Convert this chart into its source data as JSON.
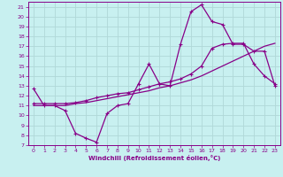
{
  "xlabel": "Windchill (Refroidissement éolien,°C)",
  "bg_color": "#c8f0f0",
  "grid_color": "#b0d8d8",
  "line_color": "#880088",
  "spine_color": "#880088",
  "xlim": [
    -0.5,
    23.5
  ],
  "ylim": [
    7,
    21.5
  ],
  "xticks": [
    0,
    1,
    2,
    3,
    4,
    5,
    6,
    7,
    8,
    9,
    10,
    11,
    12,
    13,
    14,
    15,
    16,
    17,
    18,
    19,
    20,
    21,
    22,
    23
  ],
  "yticks": [
    7,
    8,
    9,
    10,
    11,
    12,
    13,
    14,
    15,
    16,
    17,
    18,
    19,
    20,
    21
  ],
  "curve1_x": [
    0,
    1,
    2,
    3,
    4,
    5,
    6,
    7,
    8,
    9,
    10,
    11,
    12,
    13,
    14,
    15,
    16,
    17,
    18,
    19,
    20,
    21,
    22,
    23
  ],
  "curve1_y": [
    12.7,
    11.0,
    11.0,
    10.5,
    8.2,
    7.7,
    7.3,
    10.2,
    11.0,
    11.2,
    13.2,
    15.2,
    13.2,
    13.0,
    17.2,
    20.5,
    21.2,
    19.5,
    19.2,
    17.2,
    17.2,
    16.5,
    16.5,
    13.0
  ],
  "curve2_x": [
    0,
    1,
    2,
    3,
    4,
    5,
    6,
    7,
    8,
    9,
    10,
    11,
    12,
    13,
    14,
    15,
    16,
    17,
    18,
    19,
    20,
    21,
    22,
    23
  ],
  "curve2_y": [
    11.0,
    11.0,
    11.0,
    11.0,
    11.2,
    11.3,
    11.5,
    11.7,
    11.9,
    12.1,
    12.3,
    12.5,
    12.8,
    13.0,
    13.3,
    13.6,
    14.0,
    14.5,
    15.0,
    15.5,
    16.0,
    16.5,
    17.0,
    17.3
  ],
  "curve3_x": [
    0,
    1,
    2,
    3,
    4,
    5,
    6,
    7,
    8,
    9,
    10,
    11,
    12,
    13,
    14,
    15,
    16,
    17,
    18,
    19,
    20,
    21,
    22,
    23
  ],
  "curve3_y": [
    11.2,
    11.2,
    11.2,
    11.2,
    11.3,
    11.5,
    11.8,
    12.0,
    12.2,
    12.3,
    12.6,
    12.9,
    13.2,
    13.4,
    13.7,
    14.2,
    15.0,
    16.8,
    17.2,
    17.3,
    17.3,
    15.2,
    14.0,
    13.2
  ]
}
